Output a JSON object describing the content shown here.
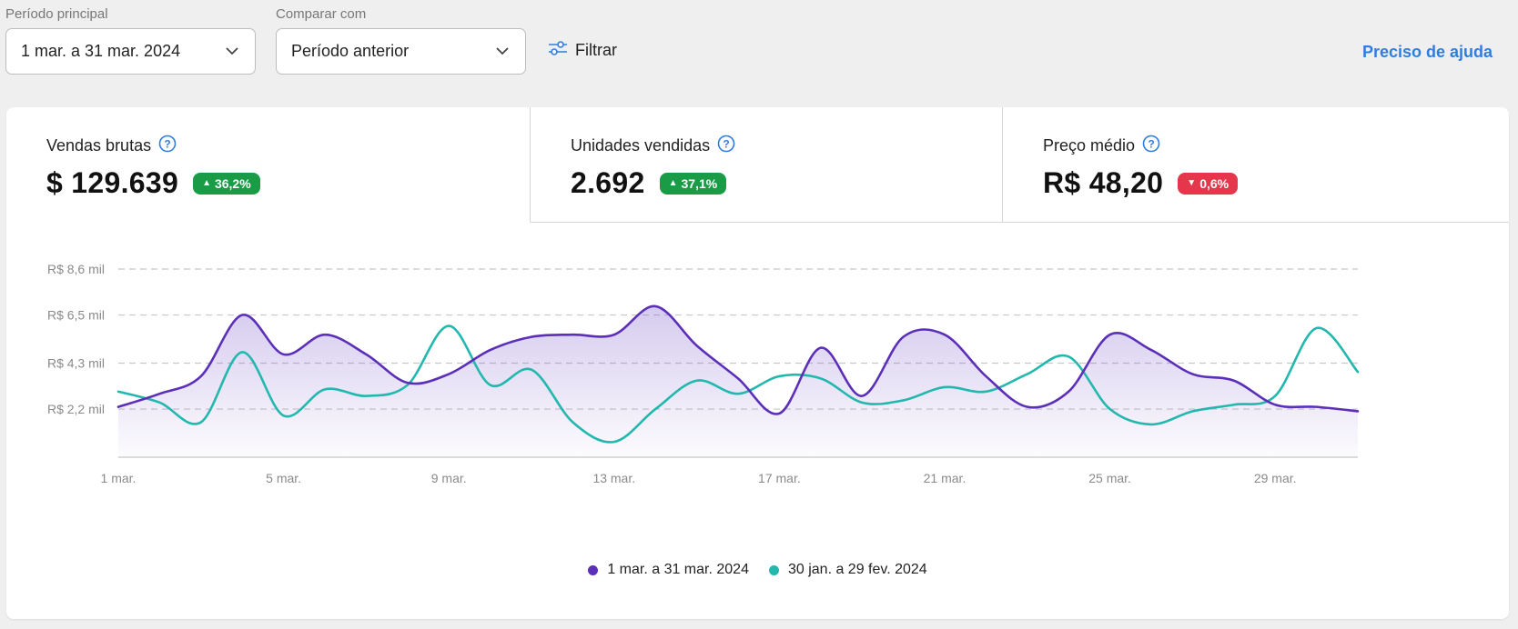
{
  "filters": {
    "main_period_label": "Período principal",
    "main_period_value": "1 mar. a 31 mar. 2024",
    "compare_label": "Comparar com",
    "compare_value": "Período anterior",
    "filter_button": "Filtrar",
    "help_link": "Preciso de ajuda"
  },
  "metrics": [
    {
      "title": "Vendas brutas",
      "value": "$ 129.639",
      "change": "36,2%",
      "direction": "up"
    },
    {
      "title": "Unidades vendidas",
      "value": "2.692",
      "change": "37,1%",
      "direction": "up"
    },
    {
      "title": "Preço médio",
      "value": "R$ 48,20",
      "change": "0,6%",
      "direction": "down"
    }
  ],
  "colors": {
    "current_series": "#5b2fb8",
    "previous_series": "#23b8ad",
    "positive": "#1a9c46",
    "negative": "#e5364b",
    "link": "#2f7de1"
  },
  "chart_data": {
    "type": "line",
    "y_ticks": [
      "R$ 8,6 mil",
      "R$ 6,5 mil",
      "R$ 4,3 mil",
      "R$ 2,2 mil"
    ],
    "y_tick_values": [
      8.6,
      6.5,
      4.3,
      2.2
    ],
    "ylim": [
      0,
      8.6
    ],
    "x_ticks": [
      "1 mar.",
      "5 mar.",
      "9 mar.",
      "13 mar.",
      "17 mar.",
      "21 mar.",
      "25 mar.",
      "29 mar."
    ],
    "x_tick_days": [
      1,
      5,
      9,
      13,
      17,
      21,
      25,
      29
    ],
    "x_days": [
      1,
      2,
      3,
      4,
      5,
      6,
      7,
      8,
      9,
      10,
      11,
      12,
      13,
      14,
      15,
      16,
      17,
      18,
      19,
      20,
      21,
      22,
      23,
      24,
      25,
      26,
      27,
      28,
      29,
      30,
      31
    ],
    "grid": true,
    "legend_position": "bottom",
    "series": [
      {
        "name": "1 mar. a 31 mar. 2024",
        "filled": true,
        "values": [
          2.3,
          2.9,
          3.7,
          6.5,
          4.7,
          5.6,
          4.7,
          3.4,
          3.8,
          4.9,
          5.5,
          5.6,
          5.6,
          6.9,
          5.1,
          3.6,
          2.0,
          5.0,
          2.8,
          5.5,
          5.6,
          3.7,
          2.3,
          3.0,
          5.6,
          4.9,
          3.8,
          3.5,
          2.4,
          2.3,
          2.1
        ]
      },
      {
        "name": "30 jan. a 29 fev. 2024",
        "filled": false,
        "values": [
          3.0,
          2.5,
          1.6,
          4.8,
          1.9,
          3.1,
          2.8,
          3.3,
          6.0,
          3.3,
          4.0,
          1.6,
          0.7,
          2.2,
          3.5,
          2.9,
          3.7,
          3.6,
          2.5,
          2.6,
          3.2,
          3.0,
          3.8,
          4.6,
          2.2,
          1.5,
          2.1,
          2.4,
          2.8,
          5.9,
          3.9
        ]
      }
    ]
  }
}
